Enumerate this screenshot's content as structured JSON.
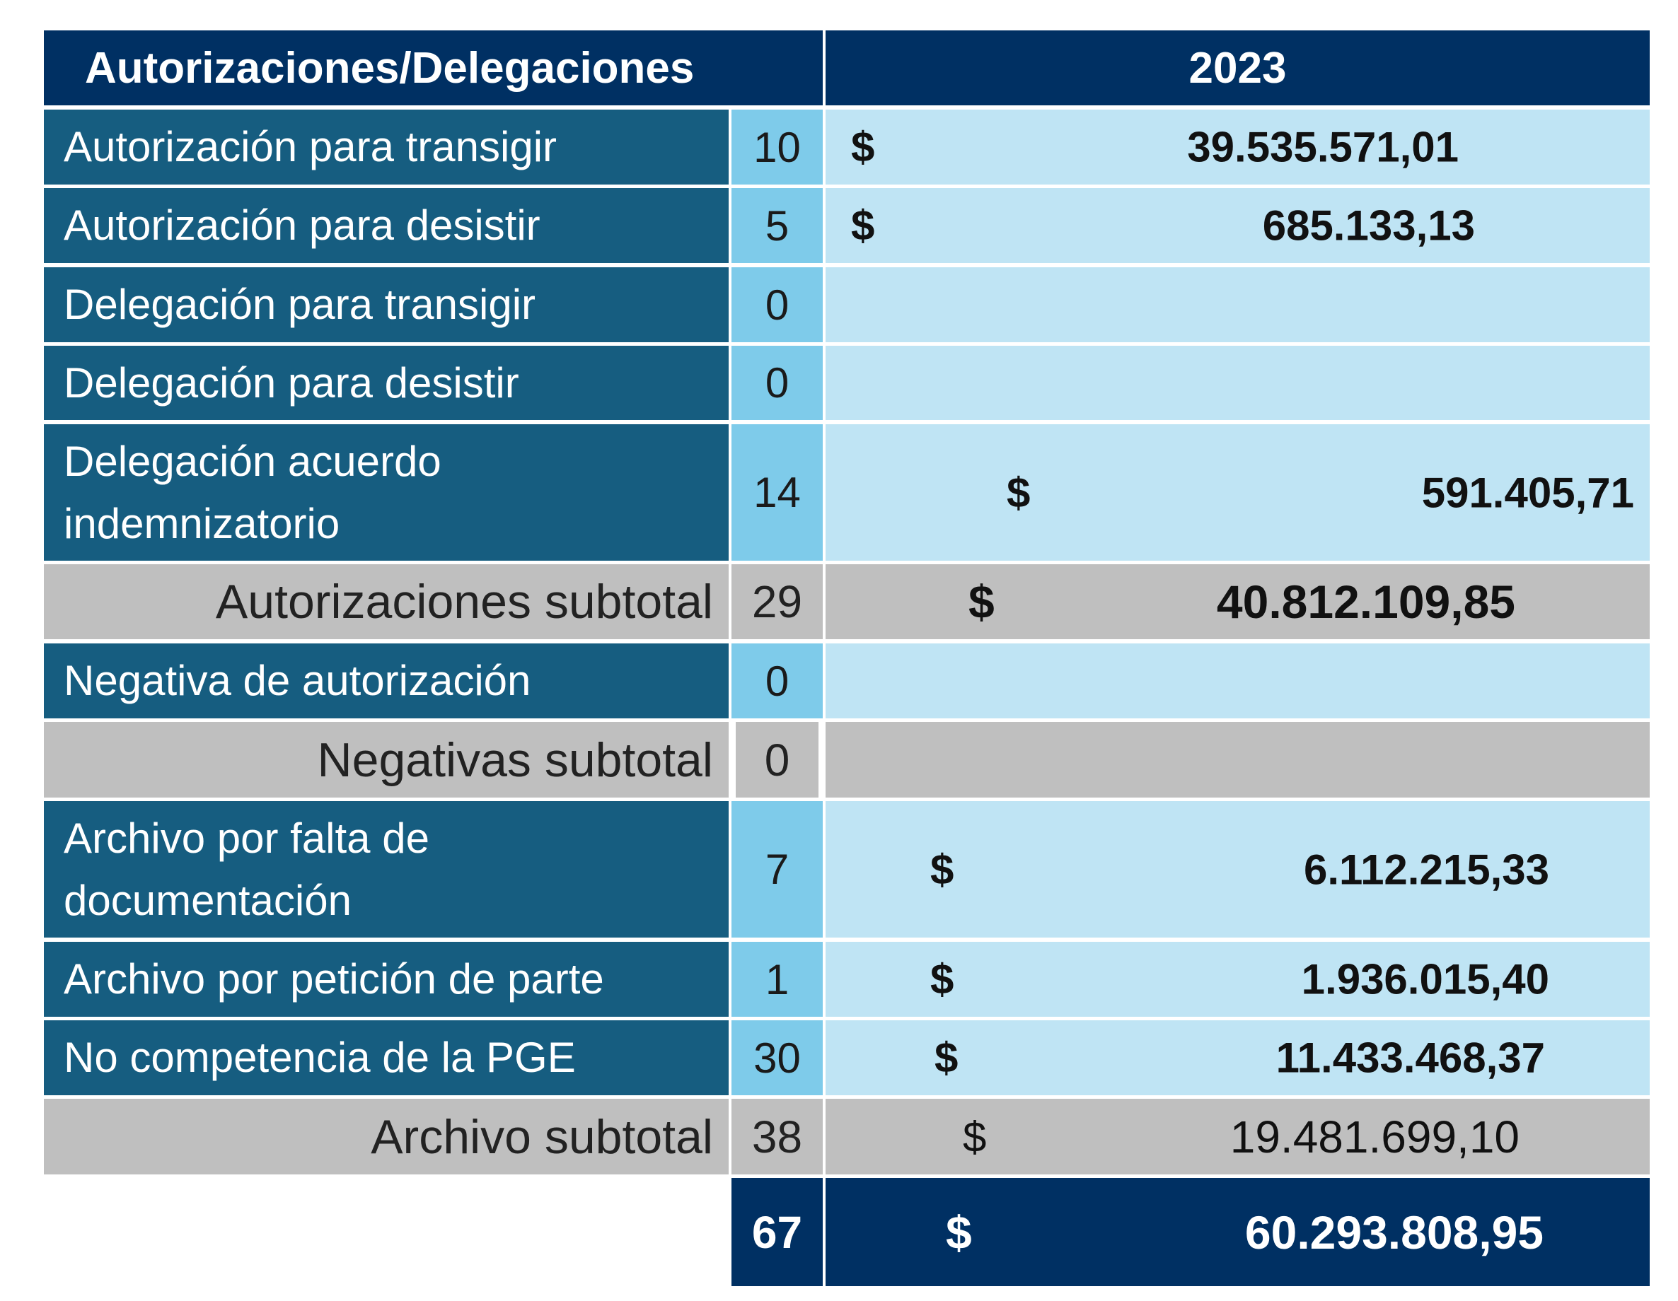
{
  "header": {
    "title": "Autorizaciones/Delegaciones",
    "year": "2023"
  },
  "rows": [
    {
      "label": "Autorización para  transigir",
      "count": "10",
      "currency": "$",
      "amount": "39.535.571,01"
    },
    {
      "label": "Autorización para desistir",
      "count": "5",
      "currency": "$",
      "amount": "685.133,13"
    },
    {
      "label": "Delegación para transigir",
      "count": "0",
      "currency": "",
      "amount": ""
    },
    {
      "label": "Delegación para desistir",
      "count": "0",
      "currency": "",
      "amount": ""
    },
    {
      "label": "Delegación acuerdo indemnizatorio",
      "count": "14",
      "currency": "$",
      "amount": "591.405,71"
    },
    {
      "label": "Autorizaciones subtotal",
      "count": "29",
      "currency": "$",
      "amount": "40.812.109,85"
    },
    {
      "label": "Negativa de autorización",
      "count": "0",
      "currency": "",
      "amount": ""
    },
    {
      "label": "Negativas subtotal",
      "count": "0",
      "currency": "",
      "amount": ""
    },
    {
      "label": "Archivo por falta de documentación",
      "count": "7",
      "currency": "$",
      "amount": "6.112.215,33"
    },
    {
      "label": "Archivo por petición de parte",
      "count": "1",
      "currency": "$",
      "amount": "1.936.015,40"
    },
    {
      "label": "No competencia de la PGE",
      "count": "30",
      "currency": "$",
      "amount": "11.433.468,37"
    },
    {
      "label": "Archivo subtotal",
      "count": "38",
      "currency": "$",
      "amount": "19.481.699,10"
    }
  ],
  "total": {
    "count": "67",
    "currency": "$",
    "amount": "60.293.808,95"
  },
  "colors": {
    "header": "#003063",
    "label_bg": "#165d80",
    "count_bg": "#7ecbea",
    "amount_bg": "#bfe4f4",
    "subtotal_bg": "#bfbfbf"
  }
}
